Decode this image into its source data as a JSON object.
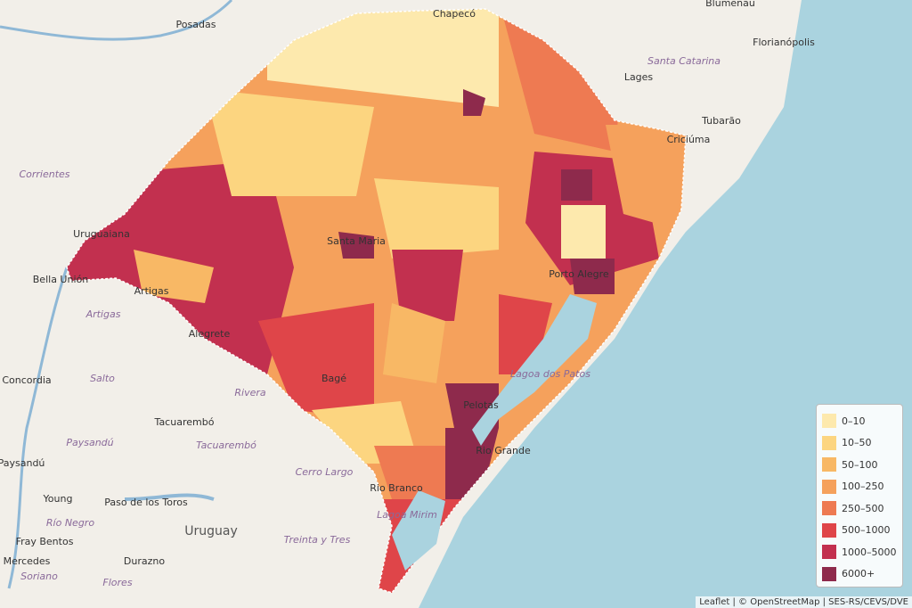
{
  "map": {
    "labels": [
      "Blumenau",
      "Chapecó",
      "Posadas",
      "Florianópolis",
      "Santa Catarina",
      "Lages",
      "Tubarão",
      "Criciúma",
      "Corrientes",
      "Uruguaiana",
      "Bella Unión",
      "Artigas",
      "Artigas",
      "Santa Maria",
      "Porto Alegre",
      "Salto",
      "Concordia",
      "Rivera",
      "Tacuarembó",
      "Tacuarembó",
      "Paysandú",
      "Paysandú",
      "Young",
      "Paso de los Toros",
      "Río Negro",
      "Uruguay",
      "Fray Bentos",
      "Mercedes",
      "Soriano",
      "Durazno",
      "Flores",
      "Treinta y Tres",
      "Cerro Largo",
      "Rio Branco",
      "Rio Grande",
      "Lagoa dos Patos",
      "Lagoa Mirim",
      "Pelotas",
      "Bagé",
      "Alegrete"
    ],
    "legend": {
      "items": [
        {
          "label": "0–10",
          "color": "#fde9ad"
        },
        {
          "label": "10–50",
          "color": "#fcd580"
        },
        {
          "label": "50–100",
          "color": "#f8b865"
        },
        {
          "label": "100–250",
          "color": "#f5a15c"
        },
        {
          "label": "250–500",
          "color": "#ee7a52"
        },
        {
          "label": "500–1000",
          "color": "#df4549"
        },
        {
          "label": "1000–5000",
          "color": "#c2304f"
        },
        {
          "label": "6000+",
          "color": "#8e2a4c"
        }
      ]
    },
    "attribution": "Leaflet | © OpenStreetMap | SES-RS/CEVS/DVE"
  }
}
